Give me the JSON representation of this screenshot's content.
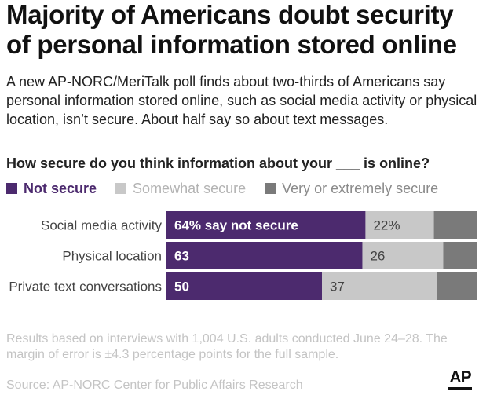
{
  "title": "Majority of Americans doubt security of personal information stored online",
  "subtitle": "A new AP-NORC/MeriTalk poll finds about two-thirds of Americans say personal information stored online, such as social media activity or physical location, isn’t secure. About half say so about text messages.",
  "question": "How secure do you think information about your ___ is online?",
  "footnote": "Results based on interviews with 1,004 U.S. adults conducted June 24–28. The margin of error is ±4.3 percentage points for the full sample.",
  "source": "Source: AP-NORC Center for Public Affairs Research",
  "logo_text": "AP",
  "colors": {
    "not_secure": "#4c2a6e",
    "somewhat_secure": "#c8c8c8",
    "very_secure": "#7a7a7a"
  },
  "legend": [
    {
      "label": "Not secure",
      "color": "#4c2a6e"
    },
    {
      "label": "Somewhat secure",
      "color": "#c8c8c8"
    },
    {
      "label": "Very or extremely secure",
      "color": "#7a7a7a"
    }
  ],
  "chart_data": {
    "type": "bar",
    "orientation": "horizontal",
    "stacked": true,
    "categories": [
      "Social media activity",
      "Physical location",
      "Private text conversations"
    ],
    "series": [
      {
        "name": "Not secure",
        "values": [
          64,
          63,
          50
        ],
        "labels": [
          "64% say not secure",
          "63",
          "50"
        ]
      },
      {
        "name": "Somewhat secure",
        "values": [
          22,
          26,
          37
        ],
        "labels": [
          "22%",
          "26",
          "37"
        ]
      },
      {
        "name": "Very or extremely secure",
        "values": [
          14,
          11,
          13
        ]
      }
    ],
    "xlim": [
      0,
      100
    ],
    "grid": false
  }
}
